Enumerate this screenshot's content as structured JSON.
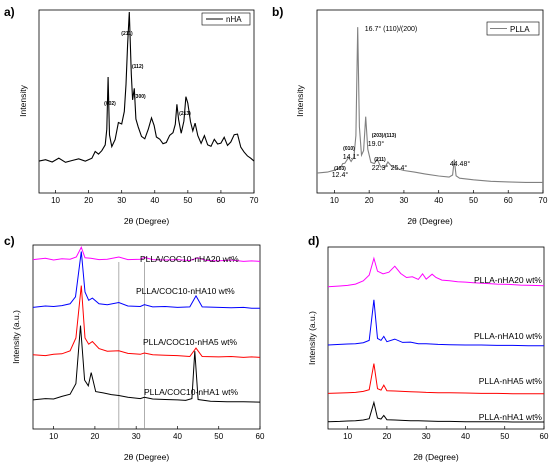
{
  "chart_data": [
    {
      "panel": "a)",
      "type": "line",
      "xlabel": "2θ (Degree)",
      "ylabel": "Intensity",
      "xlim": [
        5,
        70
      ],
      "xticks": [
        10,
        20,
        30,
        40,
        50,
        60,
        70
      ],
      "grid": false,
      "legend_position": "top-right",
      "series": [
        {
          "name": "nHA",
          "color": "#000000",
          "x": [
            5,
            7,
            9,
            11,
            13,
            15,
            17,
            19,
            21,
            22,
            23,
            24,
            25,
            25.5,
            25.9,
            26.3,
            27,
            28,
            29,
            30,
            30.8,
            31.3,
            31.8,
            32.3,
            32.9,
            33.3,
            33.8,
            34.3,
            35,
            36,
            37,
            38,
            39,
            39.8,
            40.5,
            41.5,
            42.5,
            43.5,
            44.5,
            45.5,
            46.2,
            46.7,
            47.2,
            48,
            48.8,
            49.4,
            50,
            50.8,
            51.5,
            52.2,
            53,
            54,
            55,
            56,
            57,
            58,
            59,
            60,
            61,
            62,
            63,
            64,
            65,
            66,
            67,
            68,
            69,
            70
          ],
          "y": [
            11.0,
            11.5,
            10.7,
            12.0,
            10.6,
            11.2,
            11.8,
            11.0,
            12.0,
            14.3,
            13.4,
            14.6,
            16.6,
            22.0,
            40.0,
            20.0,
            16.0,
            18.4,
            24.3,
            23.8,
            28.1,
            37.4,
            51.1,
            62.4,
            41.0,
            32.1,
            36.1,
            25.5,
            22.8,
            19.5,
            18.7,
            21.9,
            25.9,
            23.3,
            19.3,
            18.6,
            17.0,
            17.4,
            19.9,
            20.8,
            23.7,
            30.6,
            25.3,
            20.6,
            24.8,
            33.2,
            31.0,
            24.6,
            21.4,
            24.1,
            19.8,
            17.1,
            19.8,
            16.6,
            16.1,
            18.5,
            16.9,
            17.2,
            19.2,
            16.4,
            17.6,
            20.1,
            20.3,
            15.8,
            14.1,
            12.8,
            12.0,
            11.0
          ]
        }
      ],
      "annotations": [
        "(211)",
        "(112)",
        "(300)",
        "(002)",
        "(213)"
      ]
    },
    {
      "panel": "b)",
      "type": "line",
      "xlabel": "2θ (Degree)",
      "ylabel": "Intensity",
      "xlim": [
        5,
        70
      ],
      "xticks": [
        10,
        20,
        30,
        40,
        50,
        60,
        70
      ],
      "grid": false,
      "legend_position": "top-right",
      "series": [
        {
          "name": "PLLA",
          "color": "#808080",
          "x": [
            5,
            8,
            10,
            11,
            12,
            12.4,
            13,
            14.1,
            14.8,
            15.6,
            16.2,
            16.7,
            17.2,
            17.8,
            18.4,
            19.0,
            19.6,
            20.5,
            21.5,
            22.3,
            23.3,
            24.5,
            25.4,
            26.5,
            28,
            30,
            33,
            36,
            40,
            43,
            44,
            44.48,
            45,
            46,
            50,
            55,
            60,
            65,
            70
          ],
          "y": [
            7.5,
            7.9,
            8.6,
            9.2,
            10.0,
            11.1,
            11.2,
            13.4,
            11.9,
            13.6,
            21.7,
            62.6,
            25.0,
            14.3,
            16.0,
            28.8,
            16.5,
            11.6,
            11.1,
            12.8,
            9.9,
            9.6,
            11.7,
            10.0,
            9.2,
            8.5,
            7.9,
            7.2,
            6.4,
            6.0,
            6.8,
            12.6,
            6.5,
            5.6,
            5.0,
            4.4,
            4.2,
            4.0,
            4.0
          ]
        }
      ],
      "annotations": [
        "16.7° (110)/(200)",
        "(203)/(113)",
        "19.0°",
        "(010)",
        "14.1°",
        "(103)",
        "12.4°",
        "(211)",
        "22.3°",
        "25.4°",
        "44.48°"
      ]
    },
    {
      "panel": "c)",
      "type": "line",
      "xlabel": "2θ (Degree)",
      "ylabel": "Intensity (a.u.)",
      "xlim": [
        5,
        60
      ],
      "xticks": [
        10,
        20,
        30,
        40,
        50,
        60
      ],
      "grid": false,
      "reference_lines_x": [
        25.8,
        32
      ],
      "series": [
        {
          "name": "PLLA/COC10-nHA20 wt%",
          "color": "#ff00ff",
          "x": [
            5,
            8,
            10,
            12,
            14,
            15.5,
            16.7,
            17.6,
            19,
            21,
            23,
            25.8,
            28,
            31,
            32,
            34,
            37,
            40,
            43,
            45,
            47,
            50,
            53,
            56,
            58,
            60
          ],
          "y": [
            1.0,
            1.3,
            0.9,
            1.2,
            1.1,
            1.6,
            3.8,
            1.4,
            1.3,
            1.0,
            1.1,
            1.6,
            1.0,
            1.1,
            1.5,
            1.0,
            0.9,
            1.0,
            0.8,
            1.4,
            0.8,
            0.7,
            0.9,
            0.6,
            0.7,
            0.6
          ]
        },
        {
          "name": "PLLA/COC10-nHA10 wt%",
          "color": "#0000ff",
          "x": [
            5,
            8,
            10,
            12,
            14,
            15.3,
            16.7,
            17.6,
            18.5,
            19.4,
            21,
            23,
            25.8,
            28,
            31,
            32,
            34,
            37,
            40,
            43,
            44.5,
            46,
            50,
            53,
            56,
            58,
            60
          ],
          "y": [
            0.6,
            0.9,
            0.8,
            1.0,
            1.4,
            3.0,
            13.3,
            4.1,
            2.2,
            2.7,
            1.4,
            1.2,
            1.7,
            0.9,
            0.8,
            1.2,
            0.7,
            0.8,
            0.6,
            0.7,
            3.2,
            0.7,
            0.6,
            0.5,
            0.6,
            0.4,
            0.4
          ]
        },
        {
          "name": "PLLA/COC10-nHA5 wt%",
          "color": "#ff0000",
          "x": [
            5,
            8,
            10,
            12,
            14,
            15.4,
            16.7,
            17.6,
            18.5,
            19.4,
            21,
            23,
            25.8,
            28,
            31,
            32,
            34,
            37,
            40,
            43,
            44.5,
            46,
            50,
            53,
            56,
            58,
            60
          ],
          "y": [
            1.2,
            1.0,
            1.3,
            1.4,
            2.1,
            5.0,
            16.9,
            5.0,
            3.6,
            4.2,
            2.6,
            2.0,
            2.1,
            1.5,
            1.3,
            1.6,
            1.2,
            1.1,
            1.0,
            0.8,
            2.7,
            0.8,
            0.7,
            0.8,
            0.6,
            0.7,
            0.6
          ]
        },
        {
          "name": "PLLA/COC10-nHA1 wt%",
          "color": "#000000",
          "x": [
            5,
            8,
            10,
            12,
            14,
            15.4,
            16.5,
            17.5,
            18.4,
            19.1,
            20.2,
            22,
            24,
            25.8,
            28,
            31,
            32,
            34,
            37,
            40,
            42,
            43.5,
            44.2,
            45,
            48,
            52,
            56,
            60
          ],
          "y": [
            0.7,
            1.0,
            0.9,
            1.5,
            2.0,
            4.4,
            17.6,
            5.2,
            3.9,
            6.9,
            2.6,
            2.3,
            1.9,
            1.7,
            1.3,
            1.0,
            1.3,
            0.9,
            0.8,
            0.7,
            0.6,
            1.0,
            11.8,
            0.8,
            0.4,
            0.3,
            0.3,
            0.2
          ]
        }
      ]
    },
    {
      "panel": "d)",
      "type": "line",
      "xlabel": "2θ (Degree)",
      "ylabel": "Intensity (a.u.)",
      "xlim": [
        5,
        60
      ],
      "xticks": [
        10,
        20,
        30,
        40,
        50,
        60
      ],
      "grid": false,
      "series": [
        {
          "name": "PLLA-nHA20 wt%",
          "color": "#ff00ff",
          "x": [
            5,
            8,
            10,
            12,
            14,
            15.5,
            16.7,
            17.6,
            19,
            20.5,
            22,
            23.5,
            25,
            26.5,
            28,
            29.1,
            30,
            31.5,
            32.5,
            34,
            36,
            38,
            40,
            42,
            45,
            48,
            51,
            54,
            57,
            60
          ],
          "y": [
            1.0,
            1.2,
            1.4,
            1.8,
            2.8,
            4.5,
            9.6,
            5.7,
            4.9,
            5.4,
            7.2,
            5.0,
            3.8,
            4.0,
            3.2,
            4.9,
            3.3,
            4.8,
            3.8,
            3.0,
            2.8,
            2.5,
            2.4,
            2.2,
            2.0,
            1.8,
            1.7,
            1.5,
            1.4,
            1.3
          ]
        },
        {
          "name": "PLLA-nHA10 wt%",
          "color": "#0000ff",
          "x": [
            5,
            8,
            10,
            12,
            14,
            15.5,
            16.7,
            17.6,
            18.5,
            19.2,
            20,
            22,
            24,
            26,
            28,
            30,
            33,
            36,
            40,
            44,
            48,
            52,
            56,
            60
          ],
          "y": [
            0.6,
            0.8,
            0.9,
            1.0,
            1.3,
            2.0,
            14.3,
            2.6,
            2.0,
            3.2,
            1.6,
            2.4,
            1.4,
            1.5,
            1.0,
            1.0,
            0.8,
            0.7,
            0.6,
            0.6,
            0.5,
            0.5,
            0.4,
            0.4
          ]
        },
        {
          "name": "PLLA-nHA5 wt%",
          "color": "#ff0000",
          "x": [
            5,
            8,
            10,
            12,
            14,
            15.5,
            16.7,
            17.6,
            18.5,
            19.2,
            20,
            22,
            24,
            26,
            28,
            30,
            33,
            36,
            40,
            44,
            48,
            52,
            56,
            60
          ],
          "y": [
            0.5,
            0.6,
            0.7,
            0.8,
            1.1,
            1.6,
            9.5,
            1.9,
            1.5,
            3.0,
            1.3,
            1.2,
            1.1,
            1.0,
            0.9,
            0.8,
            0.7,
            0.7,
            0.6,
            0.5,
            0.5,
            0.4,
            0.4,
            0.4
          ]
        },
        {
          "name": "PLLA-nHA1 wt%",
          "color": "#000000",
          "x": [
            5,
            8,
            10,
            12,
            14,
            15.5,
            16.7,
            17.6,
            18.5,
            19.2,
            20,
            22,
            24,
            26,
            28,
            30,
            33,
            36,
            40,
            44,
            48,
            52,
            56,
            60
          ],
          "y": [
            0.4,
            0.5,
            0.6,
            0.7,
            0.9,
            1.3,
            6.2,
            1.5,
            1.2,
            2.3,
            1.0,
            0.9,
            0.8,
            0.7,
            0.7,
            0.6,
            0.5,
            0.5,
            0.4,
            0.4,
            0.4,
            0.3,
            0.3,
            0.3
          ]
        }
      ]
    }
  ]
}
